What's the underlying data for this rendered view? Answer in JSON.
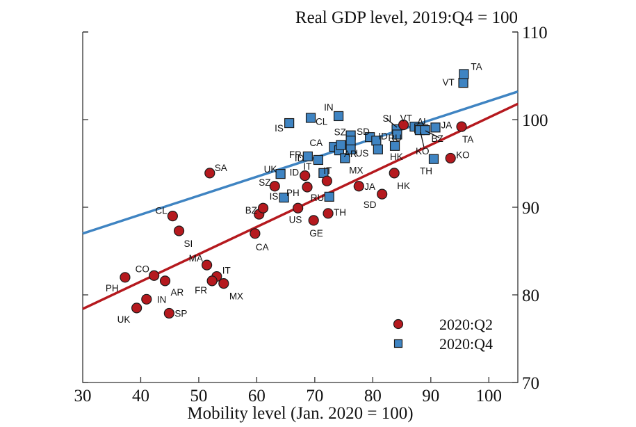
{
  "chart_data": {
    "type": "scatter",
    "title": "Real GDP level, 2019:Q4 = 100",
    "xlabel": "Mobility level (Jan. 2020 = 100)",
    "ylabel": "Real GDP level, 2019:Q4 = 100",
    "xlim": [
      30,
      105
    ],
    "ylim": [
      70,
      110
    ],
    "x_ticks": [
      30,
      40,
      50,
      60,
      70,
      80,
      90,
      100
    ],
    "y_ticks": [
      70,
      80,
      90,
      100,
      110
    ],
    "y_axis_side": "right",
    "grid": false,
    "legend": {
      "placement": "bottom-right",
      "entries": [
        {
          "name": "2020:Q2",
          "marker": "circle",
          "color": "#b5191e"
        },
        {
          "name": "2020:Q4",
          "marker": "square",
          "color": "#3f84c2"
        }
      ]
    },
    "series": [
      {
        "name": "2020:Q2",
        "marker": "circle",
        "color": "#b5191e",
        "fit_line": {
          "x": [
            30,
            105
          ],
          "y": [
            78.4,
            101.8
          ]
        },
        "points": [
          {
            "label": "PH",
            "x": 37.3,
            "y": 82.0
          },
          {
            "label": "CO",
            "x": 42.3,
            "y": 82.2
          },
          {
            "label": "IN",
            "x": 41.0,
            "y": 79.5
          },
          {
            "label": "UK",
            "x": 39.3,
            "y": 78.5
          },
          {
            "label": "AR",
            "x": 44.2,
            "y": 81.6
          },
          {
            "label": "SP",
            "x": 44.9,
            "y": 77.9
          },
          {
            "label": "CL",
            "x": 45.5,
            "y": 89.0
          },
          {
            "label": "SI",
            "x": 46.6,
            "y": 87.3
          },
          {
            "label": "SA",
            "x": 51.9,
            "y": 93.9
          },
          {
            "label": "MA",
            "x": 51.4,
            "y": 83.4
          },
          {
            "label": "IT",
            "x": 53.1,
            "y": 82.1
          },
          {
            "label": "FR",
            "x": 52.3,
            "y": 81.6
          },
          {
            "label": "MX",
            "x": 54.3,
            "y": 81.3
          },
          {
            "label": "BZ",
            "x": 60.4,
            "y": 89.2
          },
          {
            "label": "",
            "x": 61.1,
            "y": 89.9
          },
          {
            "label": "CA",
            "x": 59.7,
            "y": 87.0
          },
          {
            "label": "SZ",
            "x": 63.1,
            "y": 92.4
          },
          {
            "label": "US",
            "x": 67.1,
            "y": 89.9
          },
          {
            "label": "GE",
            "x": 69.8,
            "y": 88.5
          },
          {
            "label": "ID",
            "x": 68.3,
            "y": 93.6
          },
          {
            "label": "PH",
            "x": 68.7,
            "y": 92.3
          },
          {
            "label": "IT",
            "x": 72.1,
            "y": 93.0
          },
          {
            "label": "TH",
            "x": 72.3,
            "y": 89.3
          },
          {
            "label": "JA",
            "x": 77.6,
            "y": 92.4
          },
          {
            "label": "SD",
            "x": 81.6,
            "y": 91.5
          },
          {
            "label": "HK",
            "x": 83.7,
            "y": 93.9
          },
          {
            "label": "VT",
            "x": 85.3,
            "y": 99.4
          },
          {
            "label": "KO",
            "x": 93.4,
            "y": 95.6
          },
          {
            "label": "TA",
            "x": 95.3,
            "y": 99.2
          }
        ]
      },
      {
        "name": "2020:Q4",
        "marker": "square",
        "color": "#3f84c2",
        "fit_line": {
          "x": [
            30,
            105
          ],
          "y": [
            87.0,
            103.2
          ]
        },
        "points": [
          {
            "label": "UK",
            "x": 64.1,
            "y": 93.8
          },
          {
            "label": "IS",
            "x": 64.7,
            "y": 91.1
          },
          {
            "label": "IS",
            "x": 65.6,
            "y": 99.6
          },
          {
            "label": "CL",
            "x": 69.3,
            "y": 100.2
          },
          {
            "label": "FR",
            "x": 68.8,
            "y": 95.8
          },
          {
            "label": "ID",
            "x": 70.6,
            "y": 95.4
          },
          {
            "label": "IT",
            "x": 71.5,
            "y": 93.9
          },
          {
            "label": "RU",
            "x": 72.5,
            "y": 91.2
          },
          {
            "label": "CA",
            "x": 73.3,
            "y": 96.9
          },
          {
            "label": "AR",
            "x": 74.2,
            "y": 96.5
          },
          {
            "label": "",
            "x": 74.5,
            "y": 97.1
          },
          {
            "label": "MX",
            "x": 75.2,
            "y": 95.6
          },
          {
            "label": "IN",
            "x": 74.1,
            "y": 100.4
          },
          {
            "label": "SZ",
            "x": 76.2,
            "y": 98.2
          },
          {
            "label": "",
            "x": 76.2,
            "y": 97.6
          },
          {
            "label": "US",
            "x": 76.2,
            "y": 96.6
          },
          {
            "label": "SD",
            "x": 79.5,
            "y": 98.0
          },
          {
            "label": "",
            "x": 80.6,
            "y": 97.6
          },
          {
            "label": "",
            "x": 80.9,
            "y": 96.6
          },
          {
            "label": "HK",
            "x": 83.8,
            "y": 97.0
          },
          {
            "label": "SI",
            "x": 84.1,
            "y": 98.9
          },
          {
            "label": "ID",
            "x": 84.2,
            "y": 98.3
          },
          {
            "label": "RU",
            "x": 87.2,
            "y": 99.2
          },
          {
            "label": "AL",
            "x": 88.0,
            "y": 99.0
          },
          {
            "label": "KO",
            "x": 88.1,
            "y": 98.8
          },
          {
            "label": "BZ",
            "x": 89.0,
            "y": 98.8
          },
          {
            "label": "JA",
            "x": 90.8,
            "y": 99.1
          },
          {
            "label": "TH",
            "x": 90.5,
            "y": 95.5
          },
          {
            "label": "VT",
            "x": 95.6,
            "y": 104.2
          },
          {
            "label": "TA",
            "x": 95.7,
            "y": 105.2
          }
        ]
      }
    ]
  }
}
